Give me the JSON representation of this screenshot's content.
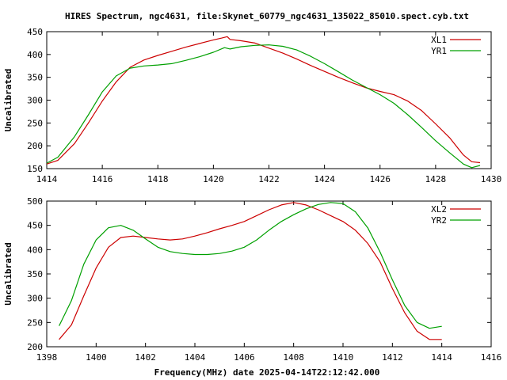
{
  "title": "HIRES Spectrum, ngc4631, file:Skynet_60779_ngc4631_135022_85010.spect.cyb.txt",
  "xlabel": "Frequency(MHz) date 2025-04-14T22:12:42.000",
  "colors": {
    "red": "#cc0000",
    "green": "#00a000",
    "frame": "#000000"
  },
  "chart_data": [
    {
      "type": "line",
      "ylabel": "Uncalibrated",
      "xlim": [
        1414,
        1430
      ],
      "ylim": [
        150,
        450
      ],
      "xticks": [
        "1414",
        "1416",
        "1418",
        "1420",
        "1422",
        "1424",
        "1426",
        "1428",
        "1430"
      ],
      "yticks": [
        "150",
        "200",
        "250",
        "300",
        "350",
        "400",
        "450"
      ],
      "grid": false,
      "legend_position": "top-right",
      "series": [
        {
          "name": "XL1",
          "color": "#cc0000",
          "x": [
            1414.0,
            1414.4,
            1415.0,
            1415.5,
            1416.0,
            1416.5,
            1417.0,
            1417.5,
            1418.0,
            1418.5,
            1419.0,
            1419.5,
            1420.0,
            1420.3,
            1420.5,
            1420.6,
            1421.0,
            1421.5,
            1422.0,
            1422.5,
            1423.0,
            1423.5,
            1424.0,
            1424.5,
            1425.0,
            1425.5,
            1426.0,
            1426.5,
            1427.0,
            1427.5,
            1428.0,
            1428.5,
            1429.0,
            1429.3,
            1429.6
          ],
          "y": [
            160,
            168,
            205,
            250,
            298,
            340,
            372,
            388,
            398,
            407,
            416,
            424,
            432,
            436,
            439,
            433,
            430,
            425,
            414,
            403,
            390,
            376,
            363,
            350,
            338,
            327,
            319,
            312,
            298,
            277,
            248,
            218,
            180,
            165,
            163
          ]
        },
        {
          "name": "YR1",
          "color": "#00a000",
          "x": [
            1414.0,
            1414.4,
            1415.0,
            1415.5,
            1416.0,
            1416.5,
            1417.0,
            1417.5,
            1418.0,
            1418.5,
            1419.0,
            1419.5,
            1420.0,
            1420.4,
            1420.6,
            1421.0,
            1421.5,
            1422.0,
            1422.5,
            1423.0,
            1423.5,
            1424.0,
            1424.5,
            1425.0,
            1425.5,
            1426.0,
            1426.5,
            1427.0,
            1427.5,
            1428.0,
            1428.5,
            1429.0,
            1429.3,
            1429.6
          ],
          "y": [
            162,
            175,
            220,
            268,
            318,
            353,
            370,
            375,
            377,
            380,
            387,
            395,
            405,
            415,
            412,
            417,
            420,
            421,
            418,
            410,
            396,
            380,
            362,
            344,
            328,
            312,
            293,
            268,
            240,
            211,
            185,
            160,
            152,
            157
          ]
        }
      ]
    },
    {
      "type": "line",
      "ylabel": "Uncalibrated",
      "xlim": [
        1398,
        1416
      ],
      "ylim": [
        200,
        500
      ],
      "xticks": [
        "1398",
        "1400",
        "1402",
        "1404",
        "1406",
        "1408",
        "1410",
        "1412",
        "1414",
        "1416"
      ],
      "yticks": [
        "200",
        "250",
        "300",
        "350",
        "400",
        "450",
        "500"
      ],
      "grid": false,
      "legend_position": "top-right",
      "series": [
        {
          "name": "XL2",
          "color": "#cc0000",
          "x": [
            1398.5,
            1399.0,
            1399.5,
            1400.0,
            1400.5,
            1401.0,
            1401.5,
            1402.0,
            1402.5,
            1403.0,
            1403.5,
            1404.0,
            1404.5,
            1405.0,
            1405.5,
            1406.0,
            1406.5,
            1407.0,
            1407.5,
            1408.0,
            1408.5,
            1409.0,
            1409.5,
            1410.0,
            1410.5,
            1411.0,
            1411.5,
            1412.0,
            1412.5,
            1413.0,
            1413.5,
            1414.0
          ],
          "y": [
            215,
            245,
            305,
            362,
            405,
            425,
            428,
            425,
            422,
            420,
            422,
            428,
            435,
            443,
            450,
            458,
            470,
            482,
            492,
            497,
            492,
            482,
            470,
            458,
            440,
            413,
            375,
            320,
            270,
            232,
            215,
            215
          ]
        },
        {
          "name": "YR2",
          "color": "#00a000",
          "x": [
            1398.5,
            1399.0,
            1399.5,
            1400.0,
            1400.5,
            1401.0,
            1401.5,
            1402.0,
            1402.5,
            1403.0,
            1403.5,
            1404.0,
            1404.5,
            1405.0,
            1405.5,
            1406.0,
            1406.5,
            1407.0,
            1407.5,
            1408.0,
            1408.5,
            1409.0,
            1409.5,
            1410.0,
            1410.5,
            1411.0,
            1411.5,
            1412.0,
            1412.5,
            1413.0,
            1413.5,
            1414.0
          ],
          "y": [
            243,
            295,
            370,
            420,
            445,
            450,
            440,
            422,
            405,
            396,
            392,
            390,
            390,
            392,
            397,
            405,
            420,
            440,
            458,
            472,
            484,
            493,
            497,
            495,
            478,
            445,
            395,
            338,
            285,
            250,
            238,
            242
          ]
        }
      ]
    }
  ]
}
